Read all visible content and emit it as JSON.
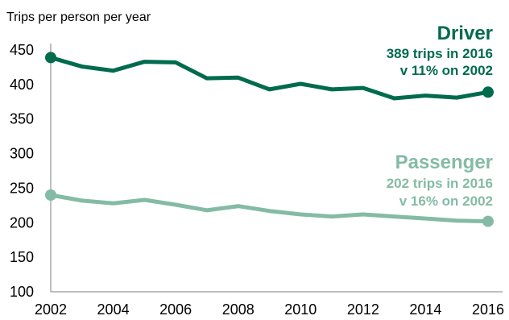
{
  "chart_data": {
    "type": "line",
    "ylabel": "Trips per person per year",
    "xlabel": "",
    "ylim": [
      100,
      450
    ],
    "yticks": [
      100,
      150,
      200,
      250,
      300,
      350,
      400,
      450
    ],
    "xlim": [
      2002,
      2016
    ],
    "xticks": [
      2002,
      2004,
      2006,
      2008,
      2010,
      2012,
      2014,
      2016
    ],
    "grid": false,
    "x": [
      2002,
      2003,
      2004,
      2005,
      2006,
      2007,
      2008,
      2009,
      2010,
      2011,
      2012,
      2013,
      2014,
      2015,
      2016
    ],
    "series": [
      {
        "name": "Driver",
        "color": "#006b4d",
        "values": [
          439,
          426,
          420,
          433,
          432,
          409,
          410,
          393,
          401,
          393,
          395,
          380,
          384,
          381,
          389
        ],
        "annotation": [
          "389 trips in 2016",
          "v 11% on 2002"
        ]
      },
      {
        "name": "Passenger",
        "color": "#84bba5",
        "values": [
          240,
          232,
          228,
          233,
          226,
          218,
          224,
          217,
          212,
          209,
          212,
          209,
          206,
          203,
          202
        ],
        "annotation": [
          "202 trips in 2016",
          "v 16% on 2002"
        ]
      }
    ]
  }
}
